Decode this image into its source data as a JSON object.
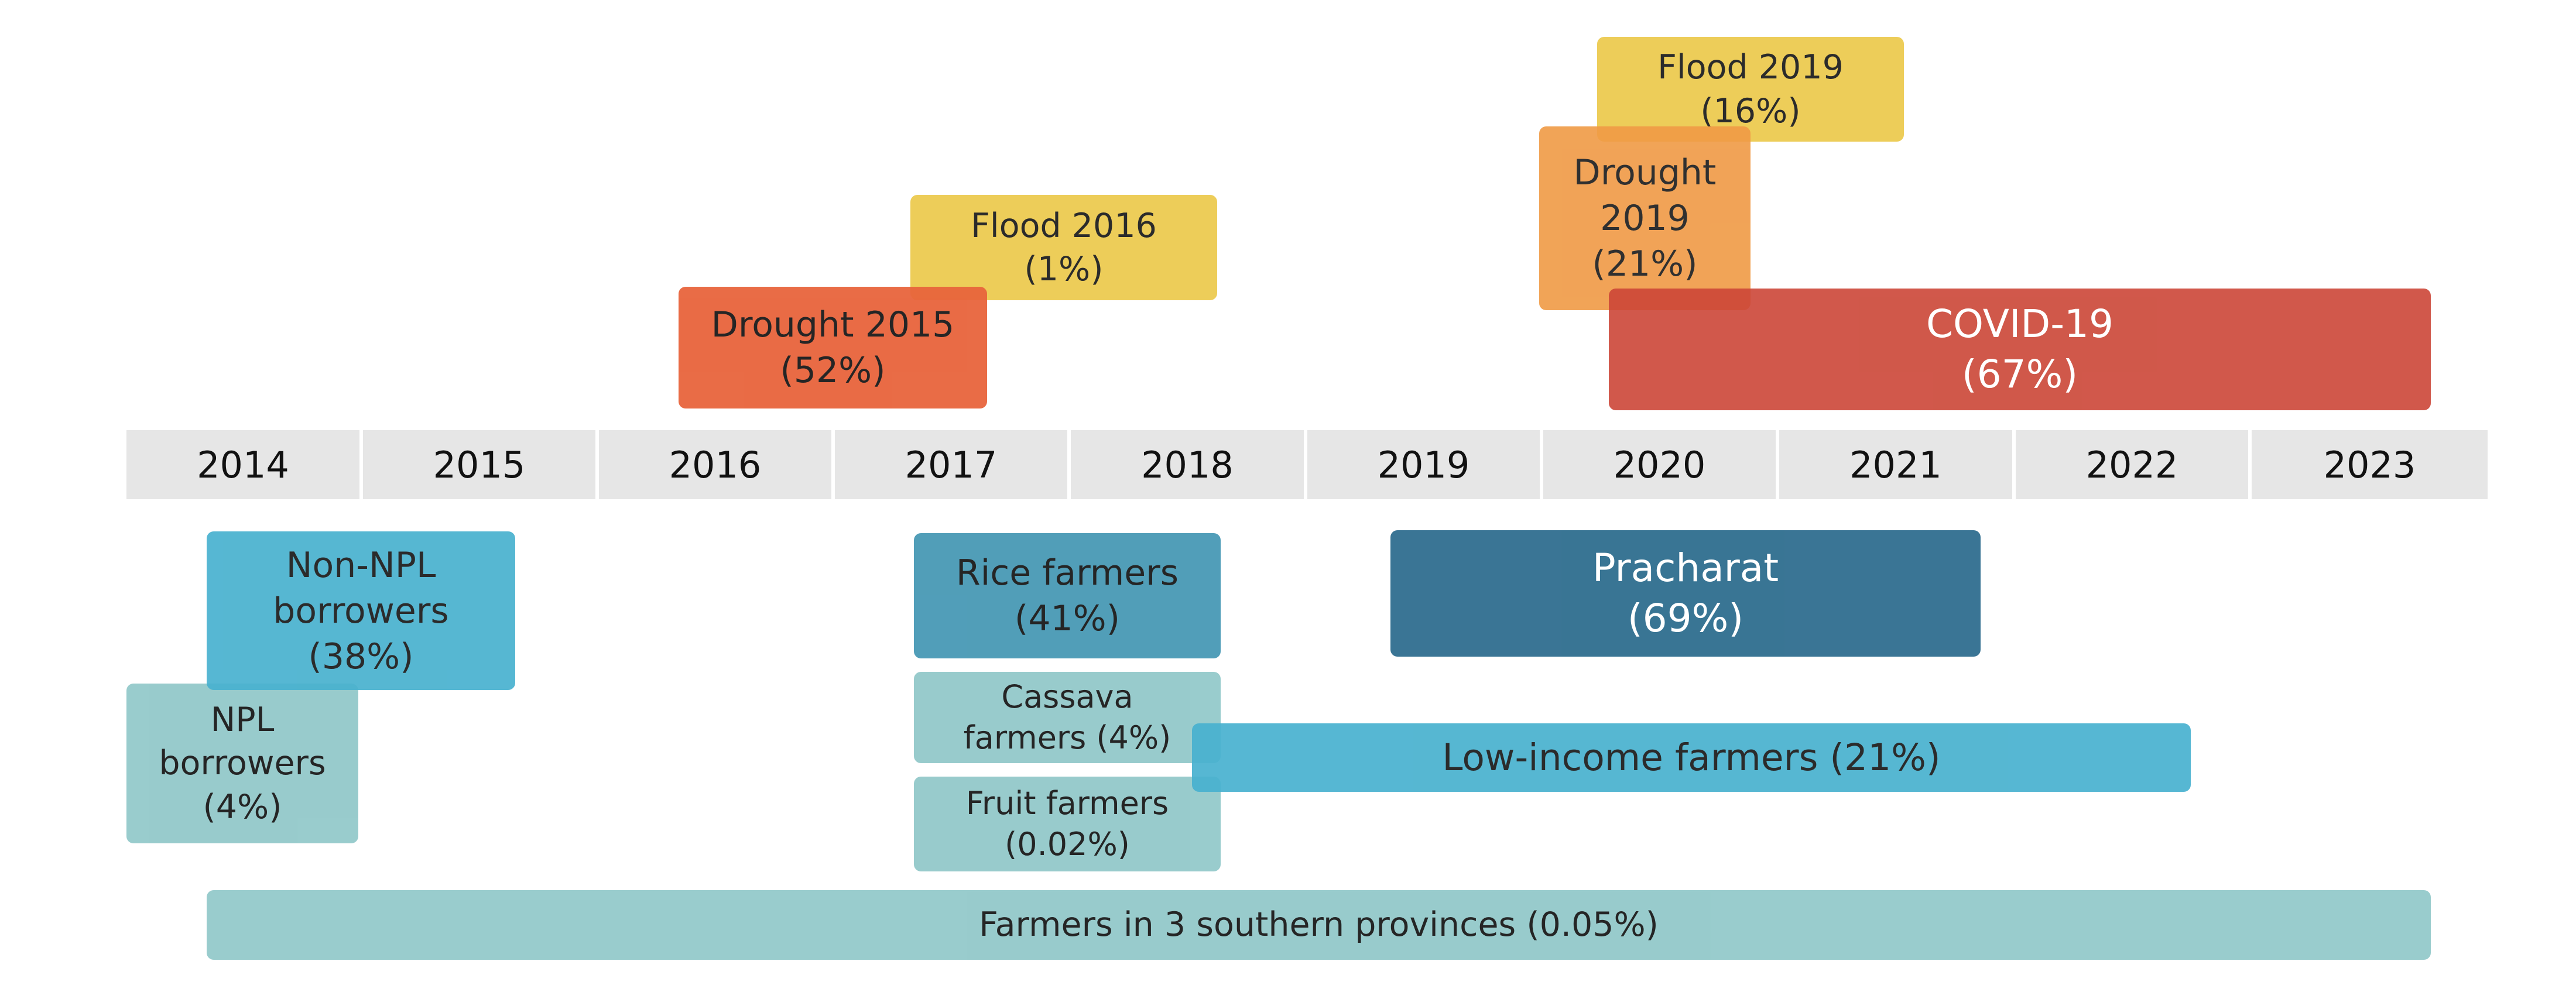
{
  "years": [
    "2014",
    "2015",
    "2016",
    "2017",
    "2018",
    "2019",
    "2020",
    "2021",
    "2022",
    "2023"
  ],
  "events": [
    {
      "id": "drought-2015",
      "lines": [
        "Drought 2015",
        "(52%)"
      ],
      "color": "#e8643c",
      "text_color": "#1a1a1a"
    },
    {
      "id": "flood-2016",
      "lines": [
        "Flood 2016",
        "(1%)"
      ],
      "color": "#ecc94b",
      "text_color": "#1a1a1a"
    },
    {
      "id": "flood-2019",
      "lines": [
        "Flood 2019",
        "(16%)"
      ],
      "color": "#ecc94b",
      "text_color": "#1a1a1a"
    },
    {
      "id": "drought-2019",
      "lines": [
        "Drought",
        "2019",
        "(21%)"
      ],
      "color": "#f09a45",
      "text_color": "#1a1a1a"
    },
    {
      "id": "covid-19",
      "lines": [
        "COVID-19",
        "(67%)"
      ],
      "color": "#cc4637",
      "text_color": "#ffffff"
    }
  ],
  "programs": [
    {
      "id": "non-npl-borrowers",
      "lines": [
        "Non-NPL",
        "borrowers",
        "(38%)"
      ],
      "color": "#48b1cf",
      "text_color": "#1a1a1a"
    },
    {
      "id": "npl-borrowers",
      "lines": [
        "NPL",
        "borrowers",
        "(4%)"
      ],
      "color": "#93c9ca",
      "text_color": "#1a1a1a"
    },
    {
      "id": "rice-farmers",
      "lines": [
        "Rice farmers",
        "(41%)"
      ],
      "color": "#4899b5",
      "text_color": "#1a1a1a"
    },
    {
      "id": "cassava-farmers",
      "lines": [
        "Cassava",
        "farmers (4%)"
      ],
      "color": "#93c9ca",
      "text_color": "#1a1a1a"
    },
    {
      "id": "fruit-farmers",
      "lines": [
        "Fruit farmers",
        "(0.02%)"
      ],
      "color": "#93c9ca",
      "text_color": "#1a1a1a"
    },
    {
      "id": "low-income-farmers",
      "lines": [
        "Low-income farmers (21%)"
      ],
      "color": "#48b1cf",
      "text_color": "#1a1a1a"
    },
    {
      "id": "pracharat",
      "lines": [
        "Pracharat",
        "(69%)"
      ],
      "color": "#2f6e8f",
      "text_color": "#ffffff"
    },
    {
      "id": "farmers-3-southern-provinces",
      "lines": [
        "Farmers in 3 southern provinces (0.05%)"
      ],
      "color": "#93c9ca",
      "text_color": "#1a1a1a"
    }
  ]
}
